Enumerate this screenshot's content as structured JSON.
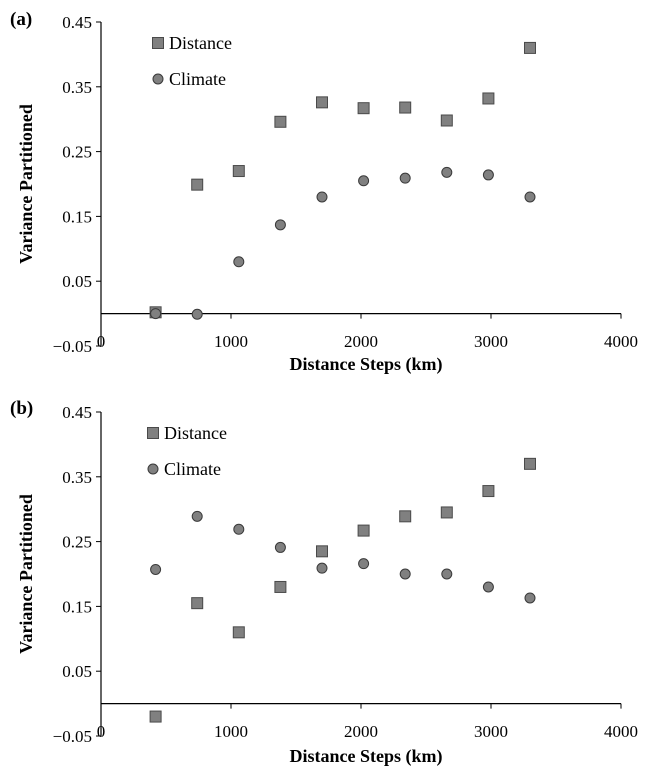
{
  "chart_data": [
    {
      "type": "scatter",
      "panel_label": "(a)",
      "xlabel": "Distance Steps (km)",
      "ylabel": "Variance Partitioned",
      "xlim": [
        0,
        4000
      ],
      "ylim": [
        -0.05,
        0.45
      ],
      "x_ticks": [
        "0",
        "1000",
        "2000",
        "3000",
        "4000"
      ],
      "y_ticks": [
        "−0.05",
        "0.05",
        "0.15",
        "0.25",
        "0.35",
        "0.45"
      ],
      "grid": false,
      "legend_position": "top-left",
      "series": [
        {
          "name": "Distance",
          "marker": "square",
          "color": "#808080",
          "points": [
            {
              "x": 420,
              "y": 0.002
            },
            {
              "x": 740,
              "y": 0.199
            },
            {
              "x": 1060,
              "y": 0.22
            },
            {
              "x": 1380,
              "y": 0.296
            },
            {
              "x": 1700,
              "y": 0.326
            },
            {
              "x": 2020,
              "y": 0.317
            },
            {
              "x": 2340,
              "y": 0.318
            },
            {
              "x": 2660,
              "y": 0.298
            },
            {
              "x": 2980,
              "y": 0.332
            },
            {
              "x": 3300,
              "y": 0.41
            }
          ]
        },
        {
          "name": "Climate",
          "marker": "circle",
          "color": "#808080",
          "points": [
            {
              "x": 420,
              "y": 0.0
            },
            {
              "x": 740,
              "y": -0.001
            },
            {
              "x": 1060,
              "y": 0.08
            },
            {
              "x": 1380,
              "y": 0.137
            },
            {
              "x": 1700,
              "y": 0.18
            },
            {
              "x": 2020,
              "y": 0.205
            },
            {
              "x": 2340,
              "y": 0.209
            },
            {
              "x": 2660,
              "y": 0.218
            },
            {
              "x": 2980,
              "y": 0.214
            },
            {
              "x": 3300,
              "y": 0.18
            }
          ]
        }
      ]
    },
    {
      "type": "scatter",
      "panel_label": "(b)",
      "xlabel": "Distance Steps (km)",
      "ylabel": "Variance Partitioned",
      "xlim": [
        0,
        4000
      ],
      "ylim": [
        -0.05,
        0.45
      ],
      "x_ticks": [
        "0",
        "1000",
        "2000",
        "3000",
        "4000"
      ],
      "y_ticks": [
        "−0.05",
        "0.05",
        "0.15",
        "0.25",
        "0.35",
        "0.45"
      ],
      "grid": false,
      "legend_position": "top-left",
      "series": [
        {
          "name": "Distance",
          "marker": "square",
          "color": "#808080",
          "points": [
            {
              "x": 420,
              "y": -0.02
            },
            {
              "x": 740,
              "y": 0.155
            },
            {
              "x": 1060,
              "y": 0.11
            },
            {
              "x": 1380,
              "y": 0.18
            },
            {
              "x": 1700,
              "y": 0.235
            },
            {
              "x": 2020,
              "y": 0.267
            },
            {
              "x": 2340,
              "y": 0.289
            },
            {
              "x": 2660,
              "y": 0.295
            },
            {
              "x": 2980,
              "y": 0.328
            },
            {
              "x": 3300,
              "y": 0.37
            }
          ]
        },
        {
          "name": "Climate",
          "marker": "circle",
          "color": "#808080",
          "points": [
            {
              "x": 420,
              "y": 0.207
            },
            {
              "x": 740,
              "y": 0.289
            },
            {
              "x": 1060,
              "y": 0.269
            },
            {
              "x": 1380,
              "y": 0.241
            },
            {
              "x": 1700,
              "y": 0.209
            },
            {
              "x": 2020,
              "y": 0.216
            },
            {
              "x": 2340,
              "y": 0.2
            },
            {
              "x": 2660,
              "y": 0.2
            },
            {
              "x": 2980,
              "y": 0.18
            },
            {
              "x": 3300,
              "y": 0.163
            }
          ]
        }
      ]
    }
  ]
}
